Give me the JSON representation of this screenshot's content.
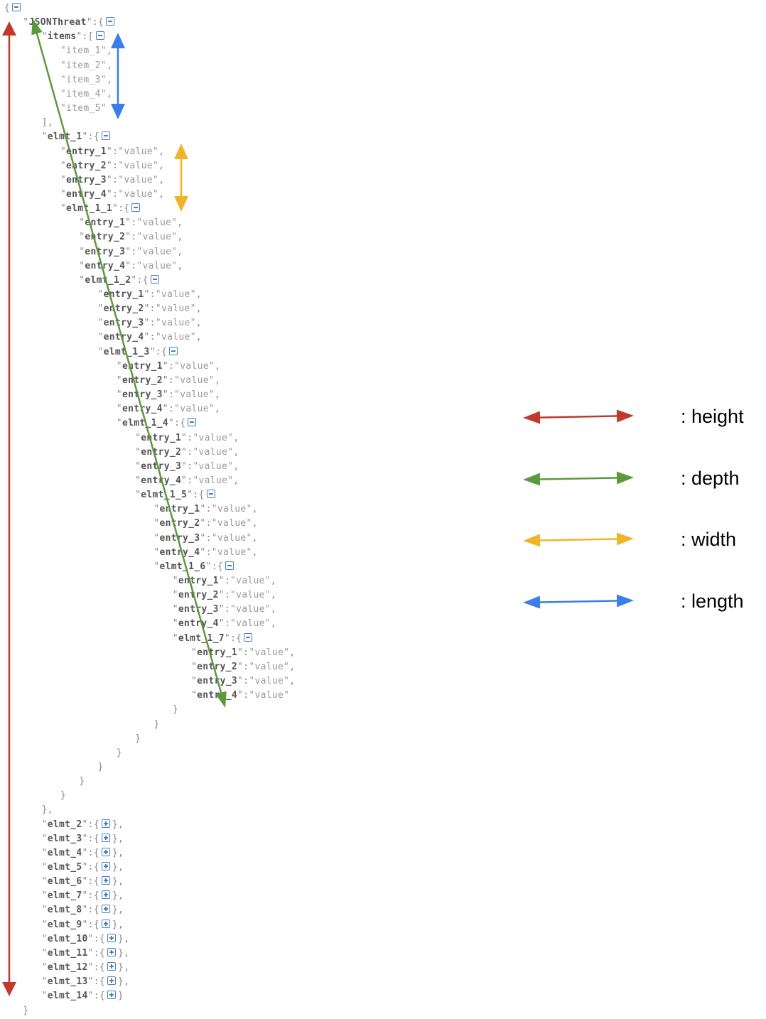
{
  "json_tree": {
    "root_key": "JSONThreat",
    "items_key": "items",
    "items": [
      "item_1",
      "item_2",
      "item_3",
      "item_4",
      "item_5"
    ],
    "nested_element_keys": [
      "elmt_1",
      "elmt_1_1",
      "elmt_1_2",
      "elmt_1_3",
      "elmt_1_4",
      "elmt_1_5",
      "elmt_1_6",
      "elmt_1_7"
    ],
    "entry_keys": [
      "entry_1",
      "entry_2",
      "entry_3",
      "entry_4"
    ],
    "entry_value": "value",
    "collapsed_element_keys": [
      "elmt_2",
      "elmt_3",
      "elmt_4",
      "elmt_5",
      "elmt_6",
      "elmt_7",
      "elmt_8",
      "elmt_9",
      "elmt_10",
      "elmt_11",
      "elmt_12",
      "elmt_13",
      "elmt_14"
    ]
  },
  "legend": [
    {
      "label": ": height",
      "color": "#c0392b"
    },
    {
      "label": ": depth",
      "color": "#5b9a3c"
    },
    {
      "label": ": width",
      "color": "#f0b429"
    },
    {
      "label": ": length",
      "color": "#3b7de9"
    }
  ],
  "colors": {
    "height": "#c0392b",
    "depth": "#5b9a3c",
    "width": "#f0b429",
    "length": "#3b7de9",
    "toggle": "#4a7fc0"
  }
}
